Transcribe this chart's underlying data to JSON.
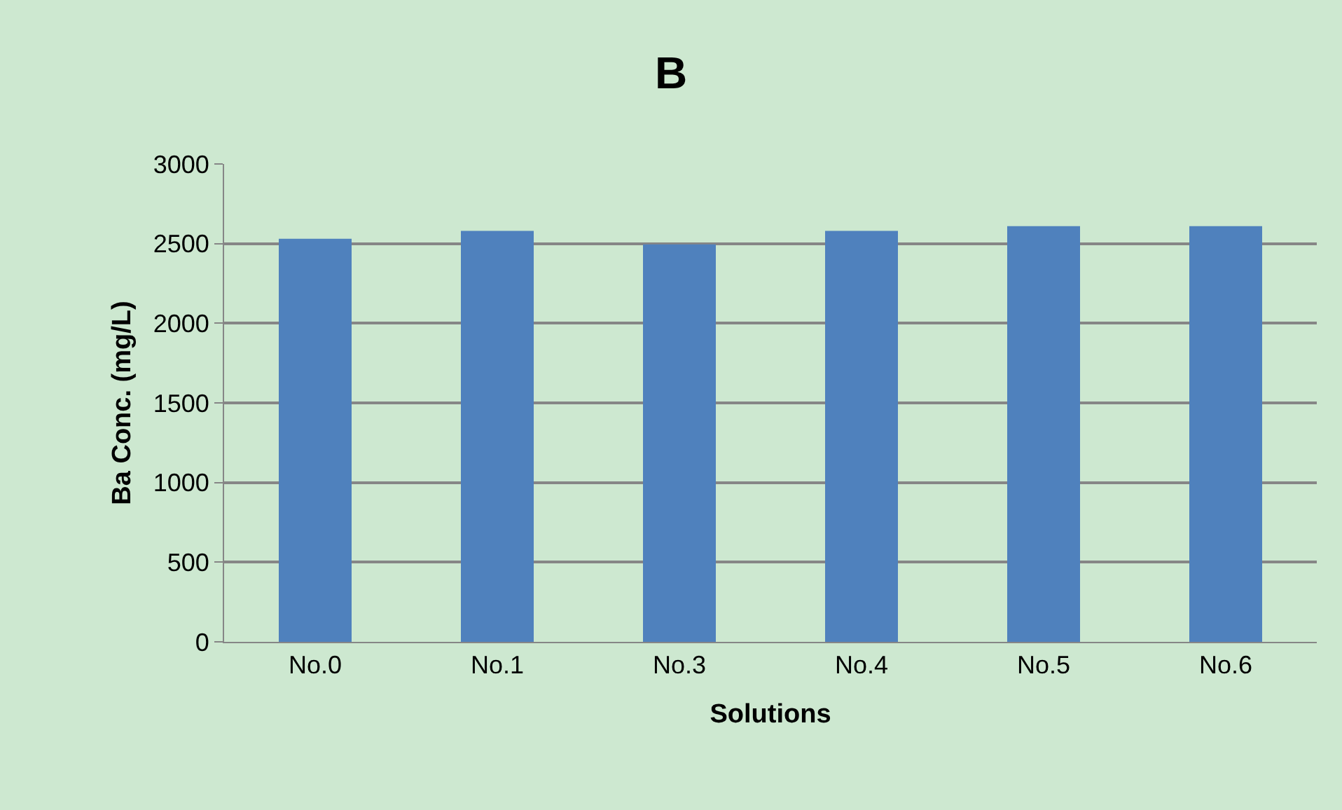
{
  "chart_data": {
    "type": "bar",
    "title": "B",
    "xlabel": "Solutions",
    "ylabel": "Ba Conc. (mg/L)",
    "categories": [
      "No.0",
      "No.1",
      "No.3",
      "No.4",
      "No.5",
      "No.6"
    ],
    "values": [
      2530,
      2580,
      2495,
      2580,
      2610,
      2610
    ],
    "color": "#4f81bd",
    "ylim": [
      0,
      3000
    ],
    "yticks": [
      0,
      500,
      1000,
      1500,
      2000,
      2500,
      3000
    ],
    "grid": "y"
  }
}
